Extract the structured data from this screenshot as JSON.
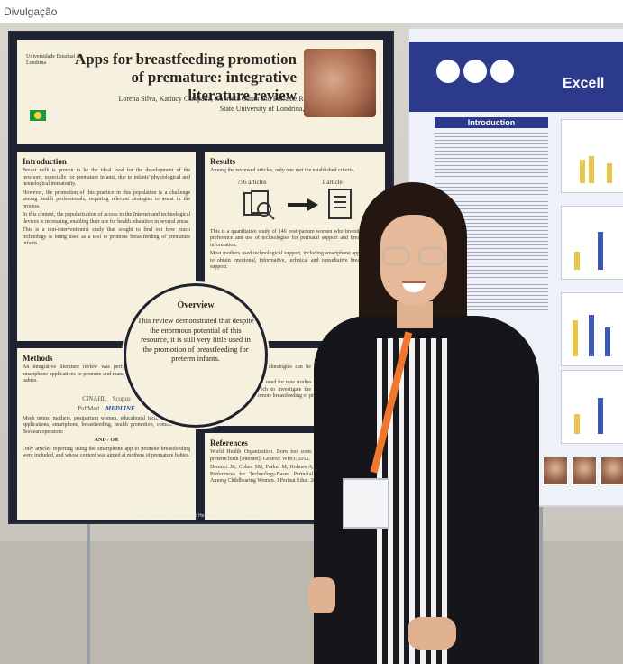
{
  "credit": "Divulgação",
  "poster_left": {
    "logo": "Universidade Estadual de Londrina",
    "title": "Apps for breastfeeding promotion of premature: integrative literature review",
    "authors": "Lorena Silva, Katiucy Campana, Gabriela Curan and Edilaine Rossetto",
    "institution": "State University of Londrina, Brazil",
    "introduction": {
      "heading": "Introduction",
      "p1": "Breast milk is proven to be the ideal food for the development of the newborn, especially for premature infants, due to infants' physiological and neurological immaturity.",
      "p2": "However, the promotion of this practice in this population is a challenge among health professionals, requiring relevant strategies to assist in the process.",
      "p3": "In this context, the popularization of access to the Internet and technological devices is increasing, enabling their use for health education in several areas.",
      "p4": "This is a non-interventionist study that sought to find out how much technology is being used as a tool to promote breastfeeding of premature infants."
    },
    "results": {
      "heading": "Results",
      "p1": "Among the reviewed articles, only one met the established criteria.",
      "count_from": "756 articles",
      "count_to": "1 article",
      "p2": "This is a quantitative study of 146 post-partum women who investigated the preference and use of technologies for perinatal support and breastfeeding information.",
      "p3": "Most mothers used technological support, including smartphone applications, to obtain emotional, informative, technical and consultative breastfeeding support."
    },
    "overview": {
      "heading": "Overview",
      "text": "This review demonstrated that despite the enormous potential of this resource, it is still very little used in the promotion of breastfeeding for preterm infants."
    },
    "methods": {
      "heading": "Methods",
      "p1": "An integrative literature review was performed to verify the use of smartphone applications to promote and manage breastfeeding of premature babies.",
      "databases": [
        "CINAHL",
        "Scopus",
        "PubMed",
        "MEDLINE"
      ],
      "p2": "Mesh terms: mothers, postpartum women, educational technology, mobile applications, smartphone, breastfeeding, health promotion, combined with Boolean operators:",
      "operators": "AND / OR",
      "p3": "Only articles reporting using the smartphone app to promote breastfeeding were included, and whose content was aimed at mothers of premature babies."
    },
    "conclusion": {
      "heading": "Conclusion",
      "p1": "Expanding the use of technologies can be a valuable tool in fostering breastfeeding.",
      "p2": "This review revealed the need for new studies in this promising area, as well as the need for research to investigate the feasibility and evaluation of smartphone apps to promote breastfeeding of premature infants."
    },
    "references": {
      "heading": "References",
      "r1": "World Health Organization. Born too soon: the global action report on preterm birth [Internet]. Geneva: WHO; 2012.",
      "r2": "Demirci JR, Cohen SM, Parker M, Holmes A, Bogen DL. Access, Use, and Preferences for Technology-Based Perinatal and Breastfeeding Support Among Childbearing Women. J Perinat Educ. 2016; 25(1):29-36."
    },
    "footer": "9th World Congress on Nursing and Healthcare • 2020 • Philadelphia, USA"
  },
  "poster_right": {
    "title": "Excell",
    "intro_heading": "Introduction"
  },
  "colors": {
    "poster_frame": "#1f2230",
    "poster_panel": "#f6f1de",
    "right_poster_blue": "#2c3a8c",
    "lanyard": "#f0782c"
  }
}
